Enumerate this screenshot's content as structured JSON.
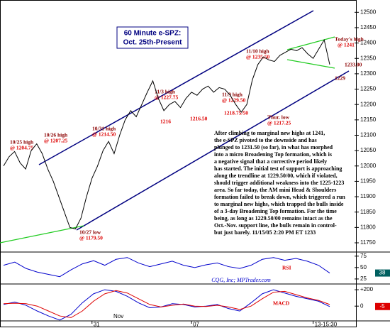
{
  "chart_data": [
    {
      "type": "line",
      "title": [
        "60 Minute e-SPZ:",
        "Oct. 25th-Present"
      ],
      "color": "#000000",
      "values": [
        12000,
        12030,
        12047,
        12010,
        11990,
        12050,
        12072,
        12040,
        11990,
        11950,
        11900,
        11850,
        11800,
        11795,
        11830,
        11900,
        11960,
        12000,
        12050,
        12080,
        12040,
        12100,
        12150,
        12180,
        12160,
        12200,
        12240,
        12277,
        12220,
        12180,
        12200,
        12210,
        12190,
        12220,
        12240,
        12230,
        12250,
        12260,
        12240,
        12255,
        12250,
        12230,
        12200,
        12175,
        12200,
        12280,
        12330,
        12355,
        12345,
        12340,
        12360,
        12370,
        12380,
        12375,
        12385,
        12365,
        12350,
        12380,
        12410,
        12330
      ],
      "ylim": [
        11720,
        12540
      ],
      "yticks": [
        11750,
        11800,
        11850,
        11900,
        11950,
        12000,
        12050,
        12100,
        12150,
        12200,
        12250,
        12300,
        12350,
        12400,
        12450,
        12500
      ],
      "xticks": [
        {
          "value": 16,
          "label": "31"
        },
        {
          "value": 34,
          "label": "07"
        },
        {
          "value": 56,
          "label": "13-15:30"
        }
      ],
      "annotations": [
        "10/25 high",
        "@ 1204.75",
        "10/26 high",
        "@ 1207.25",
        "10/31 high",
        "@ 1214.50",
        "11/3 high",
        "@ 1227.75",
        "11/9 high",
        "@ 1229.50",
        "11/10 high",
        "@ 1235.50",
        "Today's high",
        "@ 1241",
        "1233.00",
        "1229",
        "1216",
        "1216.50",
        "1218.75/50",
        "Thur. low",
        "@ 1217.25",
        "10/27 low",
        "@ 1179.50",
        "Nov"
      ],
      "commentary": [
        "After climbing to marginal new highs at 1241,",
        "the e-SPZ pivoted to the downside and has",
        "plunged to 1231.50 (so far), in what has morphed",
        "into a micro Broadening Top formation, which is",
        "a negative signal that a corrective period likely",
        "has started. The initial test of support is approaching",
        "along the trendline at 1229.50/00, which if violated,",
        "should trigger additional weakness into the 1225-1223",
        "area.  So far today, the AM mini Head & Shoulders",
        "formation failed to break down, which triggered a run",
        "to marginal new highs, which trapped the bulls inside",
        "of a 3-day Broadening Top formation. For the time",
        "being, as long as 1229.50/00 remains intact as the",
        "Oct.-Nov. support line, the bulls remain in control-",
        "but just barely.  11/15/05 2:20 PM ET 1233"
      ],
      "source": "CQG, Inc; MPTrader.com"
    },
    {
      "type": "line",
      "title": "RSI",
      "color": "#0000cc",
      "values": [
        55,
        62,
        48,
        40,
        35,
        30,
        45,
        58,
        65,
        55,
        68,
        72,
        60,
        52,
        58,
        64,
        55,
        50,
        56,
        60,
        52,
        48,
        55,
        68,
        72,
        66,
        70,
        64,
        55,
        38
      ],
      "ylim": [
        14,
        84
      ],
      "yticks": [
        25,
        50,
        75
      ],
      "last_value": 38
    },
    {
      "type": "line",
      "title": "MACD",
      "series": [
        {
          "color": "#0000cc",
          "values": [
            20,
            50,
            10,
            -60,
            -120,
            -170,
            -100,
            40,
            150,
            200,
            180,
            120,
            40,
            -20,
            -10,
            30,
            20,
            -10,
            0,
            20,
            -30,
            -60,
            40,
            150,
            200,
            160,
            120,
            90,
            60,
            -5
          ]
        },
        {
          "color": "#dd0000",
          "values": [
            30,
            35,
            30,
            0,
            -60,
            -120,
            -140,
            -60,
            60,
            150,
            190,
            160,
            90,
            20,
            -10,
            10,
            25,
            0,
            -5,
            10,
            -10,
            -40,
            0,
            90,
            170,
            180,
            140,
            100,
            70,
            20
          ]
        }
      ],
      "ylim": [
        -180,
        270
      ],
      "yticks": [
        {
          "value": 200,
          "label": "+200"
        },
        0
      ],
      "last_value": -5
    }
  ]
}
